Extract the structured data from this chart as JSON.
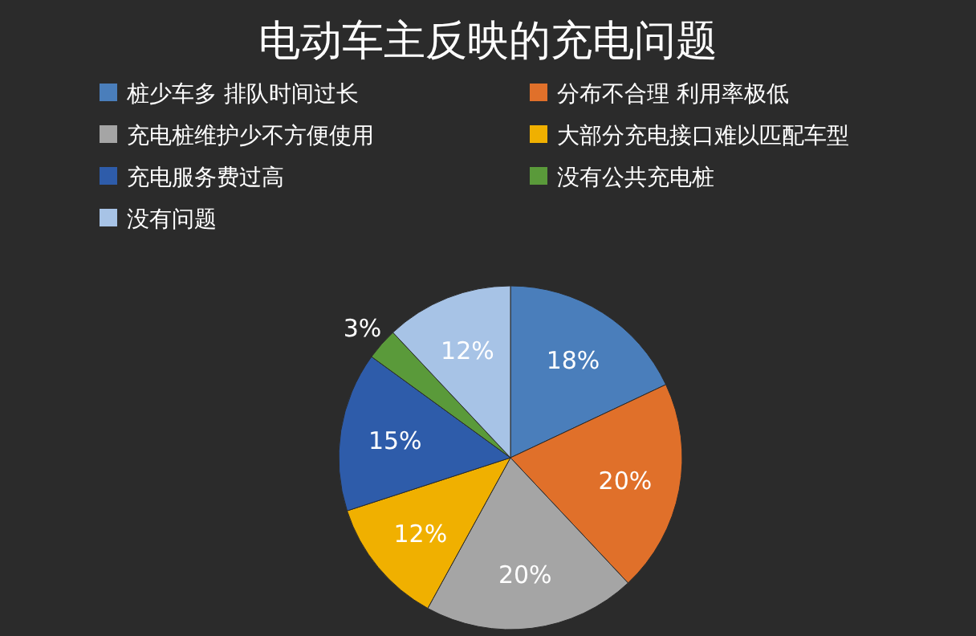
{
  "chart_data": {
    "type": "pie",
    "title": "电动车主反映的充电问题",
    "categories": [
      "桩少车多 排队时间过长",
      "分布不合理 利用率极低",
      "充电桩维护少不方便使用",
      "大部分充电接口难以匹配车型",
      "充电服务费过高",
      "没有公共充电桩",
      "没有问题"
    ],
    "values": [
      18,
      20,
      20,
      12,
      15,
      3,
      12
    ],
    "colors": [
      "#4a7ebb",
      "#e0702a",
      "#a5a5a5",
      "#f0b000",
      "#2e5caa",
      "#5a9a3a",
      "#a7c3e6"
    ],
    "value_labels": [
      "18%",
      "20%",
      "20%",
      "12%",
      "15%",
      "3%",
      "12%"
    ],
    "legend": "top"
  }
}
